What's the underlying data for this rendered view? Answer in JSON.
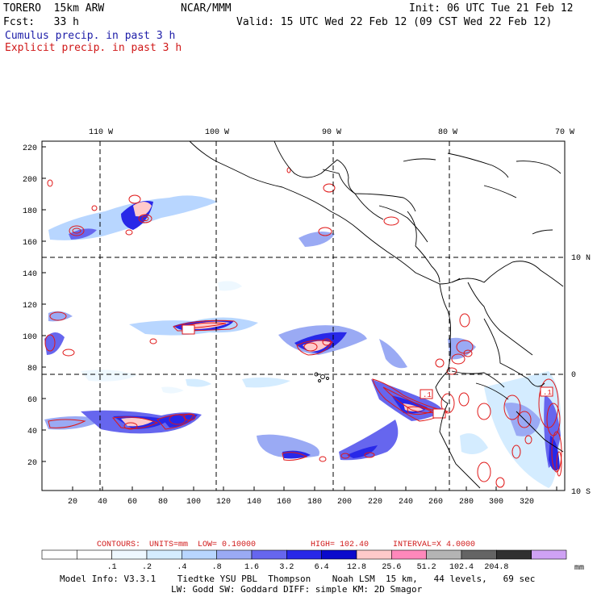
{
  "header": {
    "model": "TORERO  15km ARW",
    "org": "NCAR/MMM",
    "init": "Init: 06 UTC Tue 21 Feb 12",
    "fcst": "Fcst:   33 h",
    "valid": "Valid: 15 UTC Wed 22 Feb 12 (09 CST Wed 22 Feb 12)",
    "field1": "Cumulus precip. in past 3 h",
    "field2": "Explicit precip. in past 3 h"
  },
  "top_lon_labels": [
    "110 W",
    "100 W",
    "90 W",
    "80 W",
    "70 W"
  ],
  "right_lat_labels": [
    "10 N",
    "0",
    "10 S"
  ],
  "y_axis_ticks": [
    "220",
    "200",
    "180",
    "160",
    "140",
    "120",
    "100",
    "80",
    "60",
    "40",
    "20"
  ],
  "x_axis_ticks": [
    "20",
    "40",
    "60",
    "80",
    "100",
    "120",
    "140",
    "160",
    "180",
    "200",
    "220",
    "240",
    "260",
    "280",
    "300",
    "320"
  ],
  "contours": {
    "label": "CONTOURS:",
    "units": "UNITS=mm",
    "low": "LOW= 0.10000",
    "high": "HIGH= 102.40",
    "interval": "INTERVAL=X  4.0000"
  },
  "contour_tag": ".1",
  "legend": {
    "labels": [
      ".1",
      ".2",
      ".4",
      ".8",
      "1.6",
      "3.2",
      "6.4",
      "12.8",
      "25.6",
      "51.2",
      "102.4",
      "204.8"
    ],
    "unit": "mm",
    "colors": [
      "#ffffff",
      "#ffffff",
      "#eef8ff",
      "#d4ecff",
      "#b8d6ff",
      "#9aaaf4",
      "#6666ee",
      "#2828e8",
      "#0a0acc",
      "#ffcaca",
      "#ff88bb",
      "#b4b4b4",
      "#646464",
      "#303030",
      "#cfa2f4"
    ]
  },
  "footer": {
    "line1": "Model Info: V3.3.1    Tiedtke YSU PBL  Thompson    Noah LSM  15 km,   44 levels,   69 sec",
    "line2": "LW: Godd SW: Goddard DIFF: simple KM: 2D Smagor"
  }
}
